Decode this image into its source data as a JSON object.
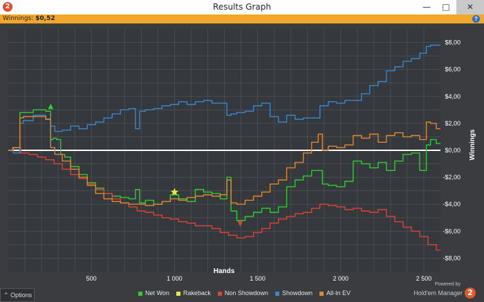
{
  "window": {
    "title": "Results Graph",
    "logo_glyph": "2",
    "minimize_glyph": "—",
    "maximize_glyph": "□",
    "close_glyph": "✕"
  },
  "infobar": {
    "winnings_label": "Winnings:",
    "winnings_value": "$0,52",
    "help_glyph": "?"
  },
  "options": {
    "label": "Options",
    "icon": "chevron-up-icon",
    "glyph": "⌃"
  },
  "brand": {
    "powered": "Powered by",
    "name": "Hold'em Manager",
    "logo_glyph": "2"
  },
  "colors": {
    "background": "#3a3c40",
    "plot_background": "#35383c",
    "grid": "#4a4d52",
    "zero_line": "#ffffff",
    "net_won": "#33cc33",
    "rakeback": "#e8e83a",
    "non_showdown": "#d9453a",
    "showdown": "#3a88cc",
    "allin_ev": "#e08a30"
  },
  "chart_data": {
    "type": "line",
    "xlabel": "Hands",
    "ylabel": "Winnings",
    "xlim": [
      0,
      2600
    ],
    "ylim": [
      -9,
      9
    ],
    "x_ticks": [
      500,
      1000,
      1500,
      2000,
      2500
    ],
    "x_tick_labels": [
      "500",
      "1 000",
      "1 500",
      "2 000",
      "2 500"
    ],
    "y_ticks": [
      8,
      6,
      4,
      2,
      0,
      -2,
      -4,
      -6,
      -8
    ],
    "y_tick_labels": [
      "$8,00",
      "$6,00",
      "$4,00",
      "$2,00",
      "$0,00",
      "-$2,00",
      "-$4,00",
      "-$6,00",
      "-$8,00"
    ],
    "grid": true,
    "legend_position": "bottom",
    "series": [
      {
        "name": "Net Won",
        "color": "#33cc33",
        "x": [
          0,
          60,
          80,
          100,
          200,
          250,
          260,
          280,
          300,
          330,
          350,
          400,
          450,
          500,
          550,
          600,
          650,
          700,
          750,
          780,
          800,
          850,
          900,
          950,
          1000,
          1050,
          1100,
          1150,
          1200,
          1250,
          1300,
          1330,
          1350,
          1400,
          1450,
          1500,
          1550,
          1600,
          1650,
          1700,
          1750,
          1800,
          1850,
          1880,
          1900,
          1950,
          2000,
          2050,
          2100,
          2150,
          2200,
          2250,
          2300,
          2350,
          2400,
          2450,
          2500,
          2530,
          2550,
          2600
        ],
        "y": [
          0,
          0.2,
          2.8,
          2.8,
          3.0,
          2.9,
          0.8,
          0.9,
          0.8,
          -0.3,
          -0.5,
          -1.2,
          -1.8,
          -2.4,
          -2.8,
          -3.2,
          -3.4,
          -3.5,
          -3.6,
          -2.9,
          -3.9,
          -3.7,
          -4.0,
          -3.8,
          -3.3,
          -3.6,
          -3.8,
          -2.9,
          -3.1,
          -3.2,
          -3.6,
          -2.0,
          -4.5,
          -5.2,
          -4.9,
          -4.6,
          -4.3,
          -4.6,
          -4.2,
          -2.7,
          -2.2,
          -1.9,
          -1.5,
          -1.5,
          -2.5,
          -2.6,
          -2.7,
          -2.3,
          -0.8,
          -1.0,
          -1.3,
          -0.9,
          -1.5,
          -0.8,
          -0.3,
          -0.2,
          -1.5,
          0.4,
          0.8,
          0.5
        ]
      },
      {
        "name": "Rakeback",
        "color": "#e8e83a",
        "x": [
          1000
        ],
        "y": [
          -3.1
        ]
      },
      {
        "name": "Non Showdown",
        "color": "#d9453a",
        "x": [
          0,
          50,
          100,
          150,
          200,
          250,
          300,
          350,
          400,
          450,
          500,
          550,
          600,
          650,
          700,
          750,
          800,
          850,
          900,
          950,
          1000,
          1050,
          1100,
          1150,
          1200,
          1250,
          1300,
          1350,
          1400,
          1450,
          1500,
          1550,
          1600,
          1650,
          1700,
          1750,
          1800,
          1850,
          1900,
          1950,
          2000,
          2050,
          2100,
          2150,
          2200,
          2250,
          2300,
          2350,
          2400,
          2450,
          2500,
          2550,
          2600
        ],
        "y": [
          0.0,
          0.2,
          -0.2,
          -0.3,
          -0.5,
          -0.7,
          -1.0,
          -1.4,
          -1.8,
          -2.1,
          -2.5,
          -2.9,
          -3.2,
          -3.6,
          -3.9,
          -4.2,
          -4.5,
          -4.6,
          -4.8,
          -5.0,
          -5.1,
          -5.3,
          -5.4,
          -5.6,
          -5.6,
          -5.8,
          -6.1,
          -6.3,
          -6.5,
          -6.4,
          -6.1,
          -5.8,
          -5.4,
          -5.1,
          -4.9,
          -4.7,
          -4.6,
          -4.3,
          -4.0,
          -4.1,
          -4.2,
          -4.4,
          -4.3,
          -4.5,
          -4.6,
          -4.4,
          -4.9,
          -5.3,
          -5.7,
          -6.0,
          -6.4,
          -7.0,
          -7.4
        ]
      },
      {
        "name": "Showdown",
        "color": "#3a88cc",
        "x": [
          0,
          60,
          80,
          100,
          200,
          250,
          260,
          300,
          350,
          400,
          450,
          500,
          550,
          600,
          650,
          700,
          750,
          780,
          800,
          850,
          900,
          950,
          1000,
          1050,
          1100,
          1150,
          1200,
          1250,
          1300,
          1330,
          1350,
          1400,
          1450,
          1500,
          1550,
          1600,
          1650,
          1700,
          1750,
          1800,
          1850,
          1900,
          1950,
          2000,
          2050,
          2100,
          2150,
          2200,
          2250,
          2300,
          2350,
          2400,
          2450,
          2500,
          2530,
          2550,
          2600
        ],
        "y": [
          0,
          -0.2,
          2.0,
          2.2,
          2.6,
          2.3,
          1.8,
          1.4,
          1.5,
          1.8,
          1.6,
          1.9,
          2.1,
          2.4,
          2.7,
          3.0,
          3.1,
          1.6,
          2.9,
          3.0,
          3.1,
          3.3,
          3.4,
          3.6,
          3.4,
          3.6,
          3.7,
          3.5,
          3.5,
          2.6,
          2.7,
          2.8,
          2.9,
          3.3,
          3.5,
          2.5,
          2.1,
          2.6,
          2.3,
          2.4,
          2.4,
          3.3,
          3.6,
          3.5,
          3.7,
          3.7,
          4.2,
          4.8,
          5.1,
          5.9,
          6.2,
          6.6,
          6.8,
          7.2,
          7.7,
          7.8,
          7.8
        ]
      },
      {
        "name": "All-In EV",
        "color": "#e08a30",
        "x": [
          0,
          60,
          80,
          100,
          200,
          250,
          260,
          300,
          350,
          400,
          450,
          500,
          550,
          600,
          650,
          700,
          750,
          800,
          850,
          900,
          950,
          1000,
          1050,
          1100,
          1150,
          1200,
          1250,
          1300,
          1330,
          1350,
          1400,
          1450,
          1500,
          1550,
          1600,
          1650,
          1700,
          1750,
          1800,
          1850,
          1880,
          1900,
          1950,
          2000,
          2050,
          2100,
          2150,
          2200,
          2250,
          2300,
          2350,
          2400,
          2450,
          2500,
          2530,
          2550,
          2600
        ],
        "y": [
          0,
          0.2,
          2.4,
          2.5,
          2.5,
          2.3,
          0.2,
          -0.3,
          -0.8,
          -1.4,
          -2.0,
          -2.6,
          -3.2,
          -3.6,
          -3.8,
          -3.9,
          -4.0,
          -4.0,
          -4.1,
          -4.0,
          -3.8,
          -3.6,
          -3.7,
          -3.5,
          -3.4,
          -3.3,
          -3.4,
          -3.3,
          -2.2,
          -3.9,
          -4.0,
          -3.7,
          -3.4,
          -3.1,
          -2.5,
          -2.2,
          -1.3,
          -0.9,
          -0.2,
          0.6,
          1.2,
          0.0,
          0.3,
          0.2,
          0.4,
          1.1,
          0.9,
          1.2,
          0.6,
          1.1,
          1.3,
          1.0,
          1.1,
          0.8,
          2.1,
          2.0,
          1.6
        ]
      }
    ],
    "markers": [
      {
        "name": "peak-marker",
        "shape": "triangle-up",
        "color": "#33cc33",
        "x": 255,
        "y": 3.2
      },
      {
        "name": "rakeback-star",
        "shape": "star",
        "color": "#e8e83a",
        "x": 1000,
        "y": -3.1
      },
      {
        "name": "low-marker",
        "shape": "triangle-down",
        "color": "#d9453a",
        "x": 1395,
        "y": -5.4
      }
    ]
  }
}
